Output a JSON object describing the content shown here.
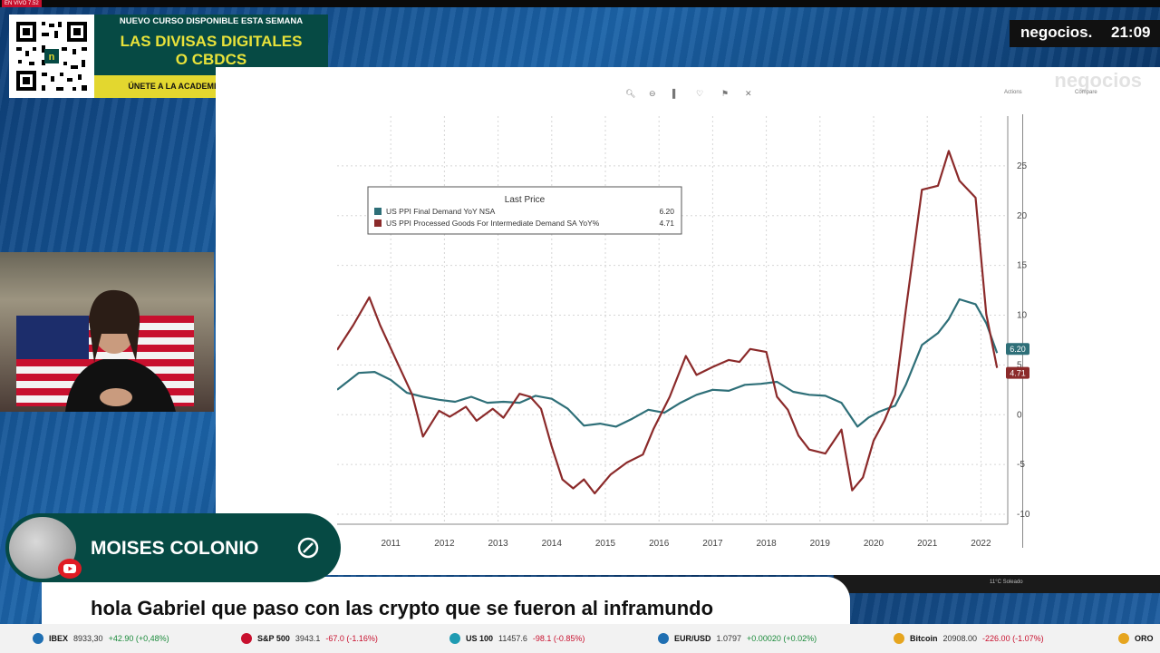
{
  "top_bar": {
    "live_tag": "EN VIVO 7.52"
  },
  "promo": {
    "top_line": "NUEVO CURSO DISPONIBLE ESTA SEMANA",
    "title_line1": "LAS DIVISAS DIGITALES",
    "title_line2": "O CBDCS",
    "cta": "ÚNETE A LA ACADEMIA DE NEGOCIOS TV"
  },
  "logo": {
    "brand": "negocios.",
    "time": "21:09"
  },
  "screen": {
    "watermark": "negocios",
    "toolbar_icons": [
      "zoom-icon",
      "zoom-out-icon",
      "bar-icon",
      "annotate-icon",
      "pin-icon",
      "close-icon"
    ],
    "right_controls": [
      "Actions",
      "Compare"
    ]
  },
  "chart_data": {
    "type": "line",
    "legend_title": "Last Price",
    "series": [
      {
        "name": "US PPI Final Demand YoY NSA",
        "last": "6.20",
        "color": "#2e6f78",
        "x": [
          2010.5,
          2010.9,
          2011.2,
          2011.5,
          2011.8,
          2012.1,
          2012.4,
          2012.7,
          2013.0,
          2013.3,
          2013.6,
          2013.9,
          2014.2,
          2014.5,
          2014.8,
          2015.1,
          2015.4,
          2015.7,
          2016.0,
          2016.3,
          2016.6,
          2016.9,
          2017.2,
          2017.5,
          2017.8,
          2018.1,
          2018.4,
          2018.7,
          2019.0,
          2019.3,
          2019.6,
          2019.9,
          2020.2,
          2020.4,
          2020.6,
          2020.9,
          2021.1,
          2021.4,
          2021.7,
          2021.9,
          2022.1,
          2022.4,
          2022.6,
          2022.8
        ],
        "y": [
          2.5,
          4.2,
          4.3,
          3.5,
          2.2,
          1.8,
          1.5,
          1.3,
          1.8,
          1.2,
          1.3,
          1.2,
          1.9,
          1.6,
          0.6,
          -1.1,
          -0.9,
          -1.2,
          -0.4,
          0.5,
          0.2,
          1.2,
          2.0,
          2.5,
          2.4,
          3.0,
          3.1,
          3.3,
          2.3,
          2.0,
          1.9,
          1.2,
          -1.2,
          -0.3,
          0.3,
          0.9,
          3.0,
          7.0,
          8.2,
          9.6,
          11.6,
          11.1,
          9.2,
          6.2
        ]
      },
      {
        "name": "US PPI Processed Goods For Intermediate Demand SA YoY%",
        "last": "4.71",
        "color": "#8b2a2a",
        "x": [
          2010.5,
          2010.8,
          2011.1,
          2011.3,
          2011.6,
          2011.9,
          2012.1,
          2012.4,
          2012.6,
          2012.9,
          2013.1,
          2013.4,
          2013.6,
          2013.9,
          2014.1,
          2014.3,
          2014.5,
          2014.7,
          2014.9,
          2015.1,
          2015.3,
          2015.6,
          2015.9,
          2016.2,
          2016.4,
          2016.7,
          2017.0,
          2017.2,
          2017.5,
          2017.8,
          2018.0,
          2018.2,
          2018.5,
          2018.7,
          2018.9,
          2019.1,
          2019.3,
          2019.6,
          2019.9,
          2020.1,
          2020.3,
          2020.5,
          2020.7,
          2020.9,
          2021.1,
          2021.4,
          2021.7,
          2021.9,
          2022.1,
          2022.4,
          2022.6,
          2022.8
        ],
        "y": [
          6.5,
          9.0,
          11.8,
          9.0,
          5.5,
          2.0,
          -2.2,
          0.4,
          -0.2,
          0.8,
          -0.6,
          0.6,
          -0.3,
          2.1,
          1.8,
          0.6,
          -3.2,
          -6.5,
          -7.4,
          -6.5,
          -7.9,
          -6.0,
          -4.8,
          -4.0,
          -1.4,
          1.8,
          5.9,
          4.0,
          4.8,
          5.5,
          5.3,
          6.6,
          6.3,
          1.8,
          0.5,
          -2.1,
          -3.5,
          -3.9,
          -1.5,
          -7.6,
          -6.3,
          -2.6,
          -0.6,
          2.0,
          10.5,
          22.6,
          23.0,
          26.5,
          23.5,
          21.8,
          10.1,
          4.71
        ]
      }
    ],
    "x_ticks": [
      "2011",
      "2012",
      "2013",
      "2014",
      "2015",
      "2016",
      "2017",
      "2018",
      "2019",
      "2020",
      "2021",
      "2022"
    ],
    "y_ticks": [
      "25",
      "20",
      "15",
      "10",
      "5",
      "0",
      "-5",
      "-10"
    ],
    "ylim": [
      -11,
      30
    ],
    "xlim": [
      2010.5,
      2023.0
    ],
    "grid": true,
    "legend_position": "top-left"
  },
  "taskbar": {
    "weather": "11°C Soleado"
  },
  "presenter_cam": {
    "visible": true
  },
  "comment": {
    "user": "MOISES COLONIO",
    "text": "hola Gabriel que paso con las crypto que se fueron al inframundo"
  },
  "ticker": [
    {
      "name": "IBEX",
      "value": "8933,30",
      "change": "+42.90 (+0,48%)",
      "up": true,
      "color": "#1f6fb2"
    },
    {
      "name": "S&P 500",
      "value": "3943.1",
      "change": "-67.0 (-1.16%)",
      "up": false,
      "color": "#c8102e"
    },
    {
      "name": "US 100",
      "value": "11457.6",
      "change": "-98.1 (-0.85%)",
      "up": false,
      "color": "#1f9bb2"
    },
    {
      "name": "EUR/USD",
      "value": "1.0797",
      "change": "+0.00020 (+0.02%)",
      "up": true,
      "color": "#1f6fb2"
    },
    {
      "name": "Bitcoin",
      "value": "20908.00",
      "change": "-226.00 (-1.07%)",
      "up": false,
      "color": "#e6a51f"
    },
    {
      "name": "ORO",
      "value": "",
      "change": "",
      "up": true,
      "color": "#e6a51f"
    }
  ]
}
